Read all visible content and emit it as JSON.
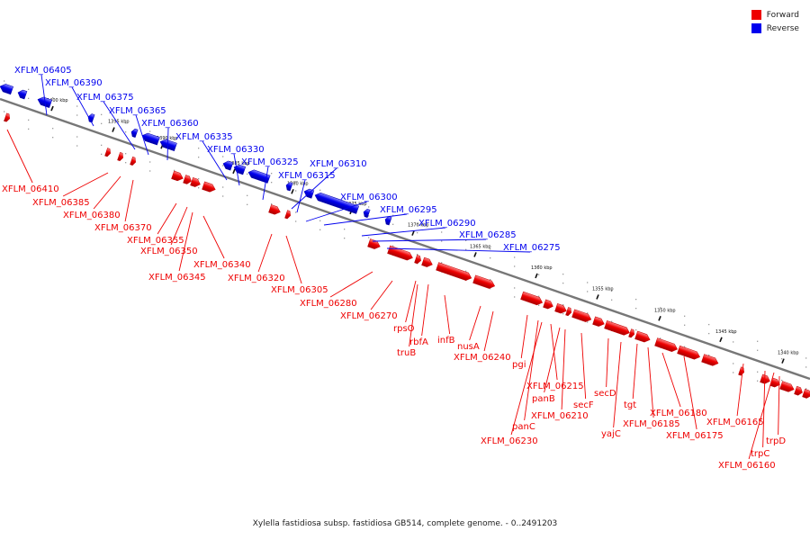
{
  "legend": {
    "forward_label": "Forward",
    "reverse_label": "Reverse",
    "forward_color": "#ee0000",
    "reverse_color": "#0000ee"
  },
  "caption": "Xylella fastidiosa subsp. fastidiosa GB514, complete genome. - 0..2491203",
  "axis_color": "#888888",
  "tick_labels": [
    "1400 kbp",
    "1395 kbp",
    "1390 kbp",
    "1385 kbp",
    "1380 kbp",
    "1375 kbp",
    "1370 kbp",
    "1365 kbp",
    "1360 kbp",
    "1355 kbp",
    "1350 kbp",
    "1345 kbp",
    "1340 kbp"
  ],
  "reverse_labels": [
    "XFLM_06405",
    "XFLM_06390",
    "XFLM_06375",
    "XFLM_06365",
    "XFLM_06360",
    "XFLM_06335",
    "XFLM_06330",
    "XFLM_06325",
    "XFLM_06310",
    "XFLM_06315",
    "XFLM_06300",
    "XFLM_06295",
    "XFLM_06290",
    "XFLM_06285",
    "XFLM_06275"
  ],
  "forward_labels": [
    "XFLM_06410",
    "XFLM_06385",
    "XFLM_06380",
    "XFLM_06370",
    "XFLM_06355",
    "XFLM_06350",
    "XFLM_06340",
    "XFLM_06345",
    "XFLM_06320",
    "XFLM_06305",
    "XFLM_06280",
    "XFLM_06270",
    "rpsO",
    "rbfA",
    "truB",
    "infB",
    "nusA",
    "XFLM_06240",
    "pgi",
    "XFLM_06215",
    "panB",
    "XFLM_06210",
    "secF",
    "secD",
    "panC",
    "XFLM_06230",
    "tgt",
    "yajC",
    "XFLM_06180",
    "XFLM_06185",
    "XFLM_06175",
    "XFLM_06165",
    "trpC",
    "trpD",
    "XFLM_06160"
  ]
}
